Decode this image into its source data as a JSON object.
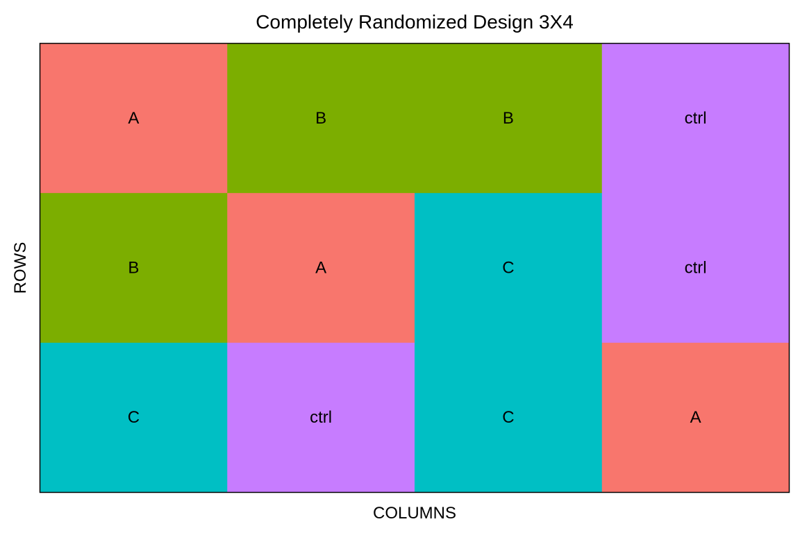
{
  "chart_data": {
    "type": "heatmap",
    "title": "Completely Randomized Design 3X4",
    "xlabel": "COLUMNS",
    "ylabel": "ROWS",
    "n_rows": 3,
    "n_cols": 4,
    "grid": false,
    "legend": "none",
    "treatment_colors": {
      "A": "#F8766D",
      "B": "#7CAE00",
      "C": "#00BFC4",
      "ctrl": "#C77CFF"
    },
    "cells": [
      {
        "row": 1,
        "col": 1,
        "label": "A"
      },
      {
        "row": 1,
        "col": 2,
        "label": "B"
      },
      {
        "row": 1,
        "col": 3,
        "label": "B"
      },
      {
        "row": 1,
        "col": 4,
        "label": "ctrl"
      },
      {
        "row": 2,
        "col": 1,
        "label": "B"
      },
      {
        "row": 2,
        "col": 2,
        "label": "A"
      },
      {
        "row": 2,
        "col": 3,
        "label": "C"
      },
      {
        "row": 2,
        "col": 4,
        "label": "ctrl"
      },
      {
        "row": 3,
        "col": 1,
        "label": "C"
      },
      {
        "row": 3,
        "col": 2,
        "label": "ctrl"
      },
      {
        "row": 3,
        "col": 3,
        "label": "C"
      },
      {
        "row": 3,
        "col": 4,
        "label": "A"
      }
    ]
  }
}
